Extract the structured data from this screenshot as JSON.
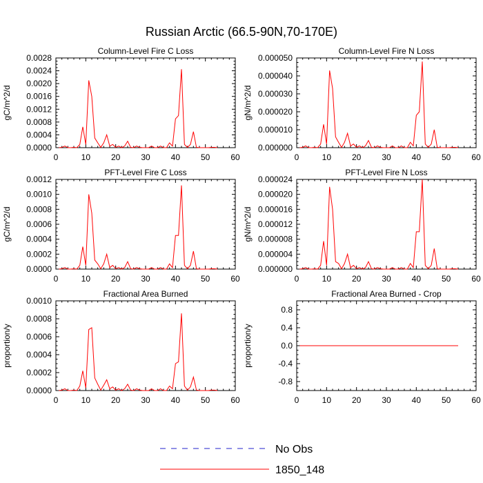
{
  "figure": {
    "title": "Russian Arctic (66.5-90N,70-170E)"
  },
  "legend": [
    {
      "label": "No Obs",
      "color": "#2222cc",
      "style": "dashed"
    },
    {
      "label": "1850_148",
      "color": "#ff0000",
      "style": "solid"
    }
  ],
  "chart_data": [
    {
      "type": "line",
      "title": "Column-Level Fire C Loss",
      "ylabel": "gC/m^2/d",
      "xlim": [
        0,
        60
      ],
      "ylim": [
        0,
        0.0028
      ],
      "xticks": [
        "0",
        "10",
        "20",
        "30",
        "40",
        "50",
        "60"
      ],
      "yticks": [
        "0.0000",
        "0.0004",
        "0.0008",
        "0.0012",
        "0.0016",
        "0.0020",
        "0.0024",
        "0.0028"
      ],
      "yticks_val": [
        0,
        0.0004,
        0.0008,
        0.0012,
        0.0016,
        0.002,
        0.0024,
        0.0028
      ],
      "series": [
        {
          "name": "1850_148",
          "color": "#ff0000",
          "x": [
            1,
            2,
            3,
            4,
            5,
            6,
            7,
            8,
            9,
            10,
            11,
            12,
            13,
            14,
            15,
            16,
            17,
            18,
            19,
            20,
            21,
            22,
            23,
            24,
            25,
            26,
            27,
            28,
            29,
            30,
            31,
            32,
            33,
            34,
            35,
            36,
            37,
            38,
            39,
            40,
            41,
            42,
            43,
            44,
            45,
            46,
            47,
            48,
            49,
            50,
            51,
            52,
            53,
            54
          ],
          "y": [
            0,
            1e-05,
            5e-05,
            0,
            0,
            1e-05,
            0,
            0.0001,
            0.00065,
            0.0001,
            0.0021,
            0.0016,
            0.0003,
            0.00015,
            1e-05,
            0.00015,
            0.0004,
            5e-05,
            0.0001,
            1e-05,
            5e-05,
            0,
            5e-05,
            0.0002,
            1e-05,
            0,
            5e-05,
            1e-05,
            0,
            0,
            0,
            5e-05,
            0,
            0,
            5e-05,
            0,
            0,
            0.00015,
            5e-05,
            0.0009,
            0.001,
            0.00245,
            0.0001,
            1e-05,
            0.0001,
            0.0005,
            1e-05,
            0,
            0,
            0,
            0,
            1e-05,
            1e-05,
            0
          ]
        }
      ]
    },
    {
      "type": "line",
      "title": "Column-Level Fire N Loss",
      "ylabel": "gN/m^2/d",
      "xlim": [
        0,
        60
      ],
      "ylim": [
        0,
        5e-05
      ],
      "xticks": [
        "0",
        "10",
        "20",
        "30",
        "40",
        "50",
        "60"
      ],
      "yticks": [
        "0.000000",
        "0.000010",
        "0.000020",
        "0.000030",
        "0.000040",
        "0.000050"
      ],
      "yticks_val": [
        0,
        1e-05,
        2e-05,
        3e-05,
        4e-05,
        5e-05
      ],
      "series": [
        {
          "name": "1850_148",
          "color": "#ff0000",
          "x": [
            1,
            2,
            3,
            4,
            5,
            6,
            7,
            8,
            9,
            10,
            11,
            12,
            13,
            14,
            15,
            16,
            17,
            18,
            19,
            20,
            21,
            22,
            23,
            24,
            25,
            26,
            27,
            28,
            29,
            30,
            31,
            32,
            33,
            34,
            35,
            36,
            37,
            38,
            39,
            40,
            41,
            42,
            43,
            44,
            45,
            46,
            47,
            48,
            49,
            50,
            51,
            52,
            53,
            54
          ],
          "y": [
            0,
            2e-07,
            1e-06,
            0,
            0,
            2e-07,
            0,
            2e-06,
            1.3e-05,
            2e-06,
            4.3e-05,
            3.3e-05,
            6e-06,
            3e-06,
            2e-07,
            3e-06,
            8e-06,
            1e-06,
            2e-06,
            2e-07,
            1e-06,
            0,
            1e-06,
            4e-06,
            2e-07,
            0,
            1e-06,
            2e-07,
            0,
            0,
            0,
            1e-06,
            0,
            0,
            1e-06,
            0,
            0,
            3e-06,
            1e-06,
            1.8e-05,
            2e-05,
            4.8e-05,
            2e-06,
            2e-07,
            2e-06,
            1e-05,
            2e-07,
            0,
            0,
            0,
            0,
            2e-07,
            2e-07,
            0
          ]
        }
      ]
    },
    {
      "type": "line",
      "title": "PFT-Level Fire C Loss",
      "ylabel": "gC/m^2/d",
      "xlim": [
        0,
        60
      ],
      "ylim": [
        0,
        0.0012
      ],
      "xticks": [
        "0",
        "10",
        "20",
        "30",
        "40",
        "50",
        "60"
      ],
      "yticks": [
        "0.0000",
        "0.0002",
        "0.0004",
        "0.0006",
        "0.0008",
        "0.0010",
        "0.0012"
      ],
      "yticks_val": [
        0,
        0.0002,
        0.0004,
        0.0006,
        0.0008,
        0.001,
        0.0012
      ],
      "series": [
        {
          "name": "1850_148",
          "color": "#ff0000",
          "x": [
            1,
            2,
            3,
            4,
            5,
            6,
            7,
            8,
            9,
            10,
            11,
            12,
            13,
            14,
            15,
            16,
            17,
            18,
            19,
            20,
            21,
            22,
            23,
            24,
            25,
            26,
            27,
            28,
            29,
            30,
            31,
            32,
            33,
            34,
            35,
            36,
            37,
            38,
            39,
            40,
            41,
            42,
            43,
            44,
            45,
            46,
            47,
            48,
            49,
            50,
            51,
            52,
            53,
            54
          ],
          "y": [
            0,
            5e-06,
            2e-05,
            0,
            0,
            5e-06,
            0,
            5e-05,
            0.0003,
            5e-05,
            0.001,
            0.00075,
            0.00012,
            7e-05,
            5e-06,
            7e-05,
            0.0002,
            2e-05,
            5e-05,
            5e-06,
            2e-05,
            0,
            2e-05,
            0.0001,
            5e-06,
            0,
            2e-05,
            5e-06,
            0,
            0,
            0,
            2e-05,
            0,
            0,
            2e-05,
            0,
            0,
            7e-05,
            2e-05,
            0.00045,
            0.00045,
            0.00112,
            5e-05,
            5e-06,
            5e-05,
            0.00024,
            5e-06,
            0,
            0,
            0,
            0,
            5e-06,
            5e-06,
            0
          ]
        }
      ]
    },
    {
      "type": "line",
      "title": "PFT-Level Fire N Loss",
      "ylabel": "gN/m^2/d",
      "xlim": [
        0,
        60
      ],
      "ylim": [
        0,
        2.4e-05
      ],
      "xticks": [
        "0",
        "10",
        "20",
        "30",
        "40",
        "50",
        "60"
      ],
      "yticks": [
        "0.000000",
        "0.000004",
        "0.000008",
        "0.000012",
        "0.000016",
        "0.000020",
        "0.000024"
      ],
      "yticks_val": [
        0,
        4e-06,
        8e-06,
        1.2e-05,
        1.6e-05,
        2e-05,
        2.4e-05
      ],
      "series": [
        {
          "name": "1850_148",
          "color": "#ff0000",
          "x": [
            1,
            2,
            3,
            4,
            5,
            6,
            7,
            8,
            9,
            10,
            11,
            12,
            13,
            14,
            15,
            16,
            17,
            18,
            19,
            20,
            21,
            22,
            23,
            24,
            25,
            26,
            27,
            28,
            29,
            30,
            31,
            32,
            33,
            34,
            35,
            36,
            37,
            38,
            39,
            40,
            41,
            42,
            43,
            44,
            45,
            46,
            47,
            48,
            49,
            50,
            51,
            52,
            53,
            54
          ],
          "y": [
            0,
            1e-07,
            4e-07,
            0,
            0,
            1e-07,
            0,
            1e-06,
            7.5e-06,
            1e-06,
            2.2e-05,
            1.6e-05,
            2e-06,
            1.5e-06,
            1e-07,
            1.5e-06,
            4e-06,
            4e-07,
            1e-06,
            1e-07,
            4e-07,
            0,
            4e-07,
            2e-06,
            1e-07,
            0,
            4e-07,
            1e-07,
            0,
            0,
            0,
            4e-07,
            0,
            0,
            4e-07,
            0,
            0,
            1.5e-06,
            4e-07,
            1e-05,
            1e-05,
            2.4e-05,
            1e-06,
            1e-07,
            1e-06,
            5.5e-06,
            1e-07,
            0,
            0,
            0,
            0,
            1e-07,
            1e-07,
            0
          ]
        }
      ]
    },
    {
      "type": "line",
      "title": "Fractional Area Burned",
      "ylabel": "proportion/y",
      "xlim": [
        0,
        60
      ],
      "ylim": [
        0,
        0.001
      ],
      "xticks": [
        "0",
        "10",
        "20",
        "30",
        "40",
        "50",
        "60"
      ],
      "yticks": [
        "0.0000",
        "0.0002",
        "0.0004",
        "0.0006",
        "0.0008",
        "0.0010"
      ],
      "yticks_val": [
        0,
        0.0002,
        0.0004,
        0.0006,
        0.0008,
        0.001
      ],
      "series": [
        {
          "name": "1850_148",
          "color": "#ff0000",
          "x": [
            1,
            2,
            3,
            4,
            5,
            6,
            7,
            8,
            9,
            10,
            11,
            12,
            13,
            14,
            15,
            16,
            17,
            18,
            19,
            20,
            21,
            22,
            23,
            24,
            25,
            26,
            27,
            28,
            29,
            30,
            31,
            32,
            33,
            34,
            35,
            36,
            37,
            38,
            39,
            40,
            41,
            42,
            43,
            44,
            45,
            46,
            47,
            48,
            49,
            50,
            51,
            52,
            53,
            54
          ],
          "y": [
            0,
            5e-06,
            2e-05,
            0,
            0,
            5e-06,
            0,
            5e-05,
            0.00022,
            3e-05,
            0.00068,
            0.0007,
            0.00014,
            7e-05,
            5e-06,
            6e-05,
            0.00012,
            2e-05,
            4e-05,
            5e-06,
            2e-05,
            0,
            2e-05,
            7e-05,
            5e-06,
            0,
            2e-05,
            5e-06,
            0,
            0,
            0,
            2e-05,
            0,
            0,
            2e-05,
            0,
            0,
            5e-05,
            2e-05,
            0.0003,
            0.00032,
            0.00086,
            5e-05,
            5e-06,
            4e-05,
            0.00015,
            5e-06,
            0,
            0,
            0,
            0,
            5e-06,
            5e-06,
            0
          ]
        }
      ]
    },
    {
      "type": "line",
      "title": "Fractional Area Burned - Crop",
      "ylabel": "proportion/y",
      "xlim": [
        0,
        60
      ],
      "ylim": [
        -1,
        1
      ],
      "xticks": [
        "0",
        "10",
        "20",
        "30",
        "40",
        "50",
        "60"
      ],
      "yticks": [
        "-0.8",
        "-0.4",
        "0.0",
        "0.4",
        "0.8"
      ],
      "yticks_val": [
        -0.8,
        -0.4,
        0,
        0.4,
        0.8
      ],
      "series": [
        {
          "name": "1850_148",
          "color": "#ff0000",
          "x": [
            1,
            54
          ],
          "y": [
            0,
            0
          ]
        }
      ]
    }
  ]
}
